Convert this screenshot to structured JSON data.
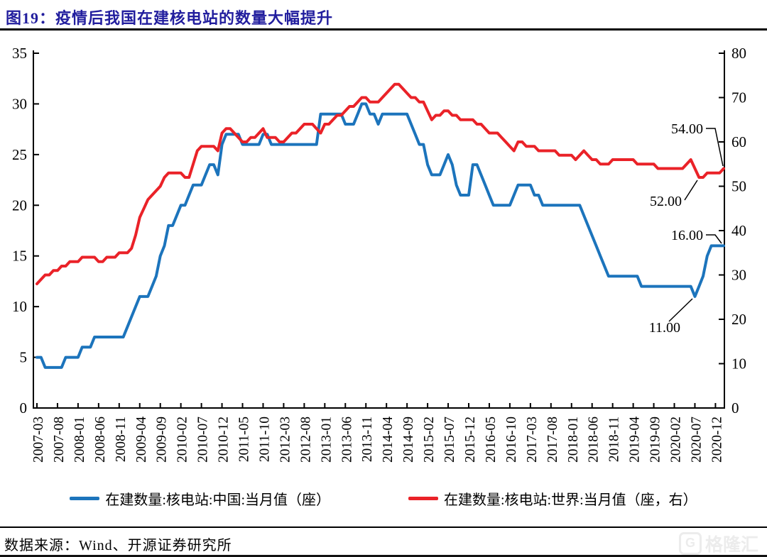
{
  "page": {
    "title": "图19：疫情后我国在建核电站的数量大幅提升",
    "source": "数据来源：Wind、开源证券研究所",
    "watermark_logo": "G",
    "watermark_text": "格隆汇"
  },
  "colors": {
    "title": "#221E9E",
    "china_line": "#1C74BC",
    "world_line": "#EA2228",
    "axis": "#000000",
    "annotation_text": "#000000",
    "watermark": "#ECECEC"
  },
  "legend": [
    {
      "label": "在建数量:核电站:中国:当月值（座）",
      "color_key": "china_line"
    },
    {
      "label": "在建数量:核电站:世界:当月值（座，右）",
      "color_key": "world_line"
    }
  ],
  "chart_data": {
    "type": "line",
    "x_start": "2007-03",
    "x_end": "2021-02",
    "x_tick_interval_months": 5,
    "x_tick_labels": [
      "2007-03",
      "2007-08",
      "2008-01",
      "2008-06",
      "2008-11",
      "2009-04",
      "2009-09",
      "2010-02",
      "2010-07",
      "2010-12",
      "2011-05",
      "2011-10",
      "2012-03",
      "2012-08",
      "2013-01",
      "2013-06",
      "2013-11",
      "2014-04",
      "2014-09",
      "2015-02",
      "2015-07",
      "2015-12",
      "2016-05",
      "2016-10",
      "2017-03",
      "2017-08",
      "2018-01",
      "2018-06",
      "2018-11",
      "2019-04",
      "2019-09",
      "2020-02",
      "2020-07",
      "2020-12"
    ],
    "left_axis": {
      "min": 0,
      "max": 35,
      "ticks": [
        0,
        5,
        10,
        15,
        20,
        25,
        30,
        35
      ]
    },
    "right_axis": {
      "min": 0,
      "max": 80,
      "ticks": [
        0,
        10,
        20,
        30,
        40,
        50,
        60,
        70,
        80
      ]
    },
    "grid": false,
    "legend_position": "bottom",
    "series": [
      {
        "name": "在建数量:核电站:中国:当月值（座）",
        "axis": "left",
        "color": "#1C74BC",
        "values": [
          5,
          5,
          4,
          4,
          4,
          4,
          4,
          5,
          5,
          5,
          5,
          6,
          6,
          6,
          7,
          7,
          7,
          7,
          7,
          7,
          7,
          7,
          8,
          9,
          10,
          11,
          11,
          11,
          12,
          13,
          15,
          16,
          18,
          18,
          19,
          20,
          20,
          21,
          22,
          22,
          22,
          23,
          24,
          24,
          23,
          26,
          27,
          27,
          27,
          27,
          26,
          26,
          26,
          26,
          26,
          27,
          27,
          26,
          26,
          26,
          26,
          26,
          26,
          26,
          26,
          26,
          26,
          26,
          26,
          29,
          29,
          29,
          29,
          29,
          29,
          28,
          28,
          28,
          29,
          30,
          30,
          29,
          29,
          28,
          29,
          29,
          29,
          29,
          29,
          29,
          29,
          28,
          27,
          26,
          26,
          24,
          23,
          23,
          23,
          24,
          25,
          24,
          22,
          21,
          21,
          21,
          24,
          24,
          23,
          22,
          21,
          20,
          20,
          20,
          20,
          20,
          21,
          22,
          22,
          22,
          22,
          21,
          21,
          20,
          20,
          20,
          20,
          20,
          20,
          20,
          20,
          20,
          20,
          19,
          18,
          17,
          16,
          15,
          14,
          13,
          13,
          13,
          13,
          13,
          13,
          13,
          13,
          12,
          12,
          12,
          12,
          12,
          12,
          12,
          12,
          12,
          12,
          12,
          12,
          12,
          11,
          12,
          13,
          15,
          16,
          16,
          16,
          16
        ]
      },
      {
        "name": "在建数量:核电站:世界:当月值（座，右）",
        "axis": "right",
        "color": "#EA2228",
        "values": [
          28,
          29,
          30,
          30,
          31,
          31,
          32,
          32,
          33,
          33,
          33,
          34,
          34,
          34,
          34,
          33,
          33,
          34,
          34,
          34,
          35,
          35,
          35,
          36,
          39,
          43,
          45,
          47,
          48,
          49,
          50,
          52,
          53,
          53,
          53,
          53,
          52,
          52,
          55,
          58,
          59,
          59,
          59,
          59,
          58,
          62,
          63,
          63,
          62,
          61,
          60,
          60,
          61,
          61,
          62,
          63,
          61,
          61,
          61,
          60,
          60,
          61,
          62,
          62,
          63,
          64,
          64,
          64,
          63,
          62,
          64,
          64,
          65,
          66,
          66,
          67,
          68,
          68,
          69,
          70,
          70,
          69,
          69,
          69,
          70,
          71,
          72,
          73,
          73,
          72,
          71,
          70,
          70,
          69,
          69,
          67,
          65,
          66,
          66,
          67,
          67,
          66,
          66,
          65,
          65,
          65,
          65,
          64,
          64,
          63,
          62,
          62,
          62,
          61,
          60,
          59,
          58,
          60,
          60,
          59,
          59,
          59,
          58,
          58,
          58,
          58,
          58,
          57,
          57,
          57,
          57,
          56,
          57,
          58,
          57,
          56,
          56,
          55,
          55,
          55,
          56,
          56,
          56,
          56,
          56,
          56,
          55,
          55,
          55,
          55,
          55,
          54,
          54,
          54,
          54,
          54,
          54,
          54,
          55,
          56,
          54,
          52,
          52,
          53,
          53,
          53,
          53,
          54
        ]
      }
    ],
    "annotations": [
      {
        "label": "54.00",
        "series": "world",
        "point": "2021-02",
        "value": 54
      },
      {
        "label": "52.00",
        "series": "world",
        "point": "2020-08",
        "value": 52
      },
      {
        "label": "16.00",
        "series": "china",
        "point": "2021-02",
        "value": 16
      },
      {
        "label": "11.00",
        "series": "china",
        "point": "2020-07",
        "value": 11
      }
    ]
  }
}
